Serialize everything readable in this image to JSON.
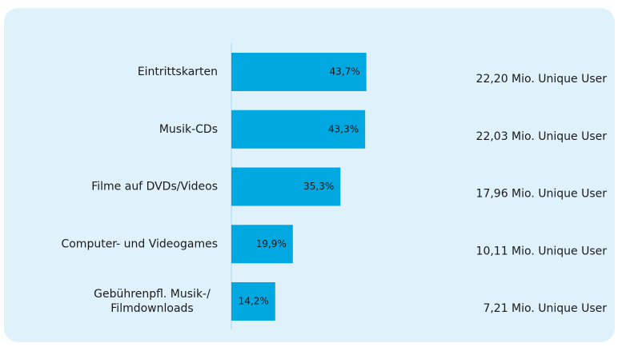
{
  "chart_data": {
    "type": "hbar",
    "categories": [
      "Eintrittskarten",
      "Musik-CDs",
      "Filme auf DVDs/Videos",
      "Computer- und Videogames",
      "Gebührenpfl. Musik-/\nFilmdownloads"
    ],
    "values": [
      43.7,
      43.3,
      35.3,
      19.9,
      14.2
    ],
    "value_labels": [
      "43,7%",
      "43,3%",
      "35,3%",
      "19,9%",
      "14,2%"
    ],
    "annotations": [
      "22,20 Mio. Unique User",
      "22,03 Mio. Unique User",
      "17,96 Mio. Unique User",
      "10,11 Mio. Unique User",
      "7,21 Mio. Unique User"
    ],
    "color": "#00a8e1"
  }
}
